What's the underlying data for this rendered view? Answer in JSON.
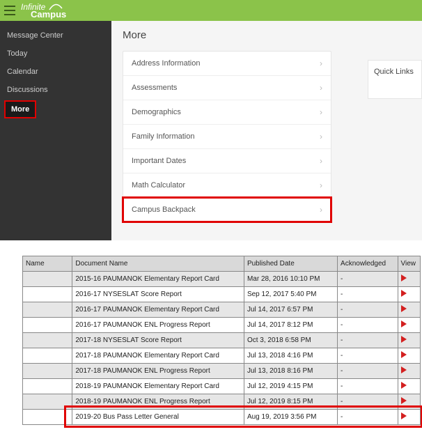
{
  "header": {
    "brand_line1": "Infinite",
    "brand_line2": "Campus"
  },
  "sidebar": {
    "items": [
      {
        "label": "Message Center"
      },
      {
        "label": "Today"
      },
      {
        "label": "Calendar"
      },
      {
        "label": "Discussions"
      },
      {
        "label": "More"
      }
    ]
  },
  "page": {
    "title": "More"
  },
  "quick_links": {
    "title": "Quick Links"
  },
  "more_list": [
    {
      "label": "Address Information"
    },
    {
      "label": "Assessments"
    },
    {
      "label": "Demographics"
    },
    {
      "label": "Family Information"
    },
    {
      "label": "Important Dates"
    },
    {
      "label": "Math Calculator"
    },
    {
      "label": "Campus Backpack"
    }
  ],
  "documents": {
    "columns": {
      "name": "Name",
      "doc": "Document Name",
      "date": "Published Date",
      "ack": "Acknowledged",
      "view": "View"
    },
    "rows": [
      {
        "name": "",
        "doc": "2015-16 PAUMANOK Elementary Report Card",
        "date": "Mar 28, 2016 10:10 PM",
        "ack": "-"
      },
      {
        "name": "",
        "doc": "2016-17 NYSESLAT Score Report",
        "date": "Sep 12, 2017 5:40 PM",
        "ack": "-"
      },
      {
        "name": "",
        "doc": "2016-17 PAUMANOK Elementary Report Card",
        "date": "Jul 14, 2017 6:57 PM",
        "ack": "-"
      },
      {
        "name": "",
        "doc": "2016-17 PAUMANOK ENL Progress Report",
        "date": "Jul 14, 2017 8:12 PM",
        "ack": "-"
      },
      {
        "name": "",
        "doc": "2017-18 NYSESLAT Score Report",
        "date": "Oct 3, 2018 6:58 PM",
        "ack": "-"
      },
      {
        "name": "",
        "doc": "2017-18 PAUMANOK Elementary Report Card",
        "date": "Jul 13, 2018 4:16 PM",
        "ack": "-"
      },
      {
        "name": "",
        "doc": "2017-18 PAUMANOK ENL Progress Report",
        "date": "Jul 13, 2018 8:16 PM",
        "ack": "-"
      },
      {
        "name": "",
        "doc": "2018-19 PAUMANOK Elementary Report Card",
        "date": "Jul 12, 2019 4:15 PM",
        "ack": "-"
      },
      {
        "name": "",
        "doc": "2018-19 PAUMANOK ENL Progress Report",
        "date": "Jul 12, 2019 8:15 PM",
        "ack": "-"
      },
      {
        "name": "",
        "doc": "2019-20 Bus Pass Letter General",
        "date": "Aug 19, 2019 3:56 PM",
        "ack": "-"
      }
    ]
  },
  "colors": {
    "accent": "#8bc34a",
    "highlight": "#e00000",
    "pdf": "#d32020"
  }
}
